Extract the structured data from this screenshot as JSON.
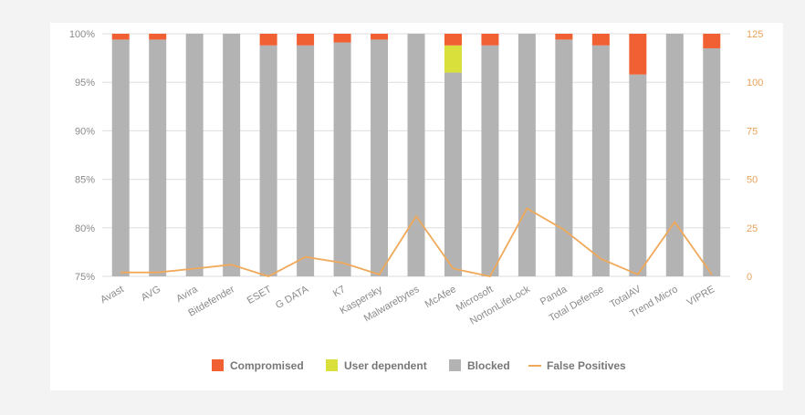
{
  "chart_data": {
    "type": "bar",
    "stacked": true,
    "title": "",
    "xlabel": "",
    "ylabel": "",
    "categories": [
      "Avast",
      "AVG",
      "Avira",
      "Bitdefender",
      "ESET",
      "G DATA",
      "K7",
      "Kaspersky",
      "Malwarebytes",
      "McAfee",
      "Microsoft",
      "NortonLifeLock",
      "Panda",
      "Total Defense",
      "TotalAV",
      "Trend Micro",
      "VIPRE"
    ],
    "ylim": [
      75,
      100
    ],
    "yticks": [
      "75%",
      "80%",
      "85%",
      "90%",
      "95%",
      "100%"
    ],
    "y2lim": [
      0,
      125
    ],
    "y2ticks": [
      "0",
      "25",
      "50",
      "75",
      "100",
      "125"
    ],
    "series": [
      {
        "name": "Blocked",
        "kind": "bar",
        "color": "#b3b3b3",
        "values": [
          99.4,
          99.4,
          100,
          100,
          98.8,
          98.8,
          99.1,
          99.4,
          100,
          96.0,
          98.8,
          100,
          99.4,
          98.8,
          95.8,
          100,
          98.5
        ]
      },
      {
        "name": "User dependent",
        "kind": "bar",
        "color": "#d9df3b",
        "values": [
          0,
          0,
          0,
          0,
          0,
          0,
          0,
          0,
          0,
          2.8,
          0,
          0,
          0,
          0,
          0,
          0,
          0
        ]
      },
      {
        "name": "Compromised",
        "kind": "bar",
        "color": "#f06033",
        "values": [
          0.6,
          0.6,
          0,
          0,
          1.2,
          1.2,
          0.9,
          0.6,
          0,
          1.2,
          1.2,
          0,
          0.6,
          1.2,
          4.2,
          0,
          1.5
        ]
      },
      {
        "name": "False Positives",
        "kind": "line",
        "axis": "right",
        "color": "#f0a95a",
        "values": [
          2,
          2,
          4,
          6,
          0,
          10,
          7,
          1,
          31,
          4,
          0,
          35,
          24,
          9,
          1,
          28,
          1
        ]
      }
    ],
    "legend": {
      "position": "bottom",
      "items": [
        {
          "label": "Compromised",
          "color": "#f06033",
          "shape": "square"
        },
        {
          "label": "User dependent",
          "color": "#d9df3b",
          "shape": "square"
        },
        {
          "label": "Blocked",
          "color": "#b3b3b3",
          "shape": "square"
        },
        {
          "label": "False Positives",
          "color": "#f0a95a",
          "shape": "line"
        }
      ]
    },
    "grid": true
  }
}
